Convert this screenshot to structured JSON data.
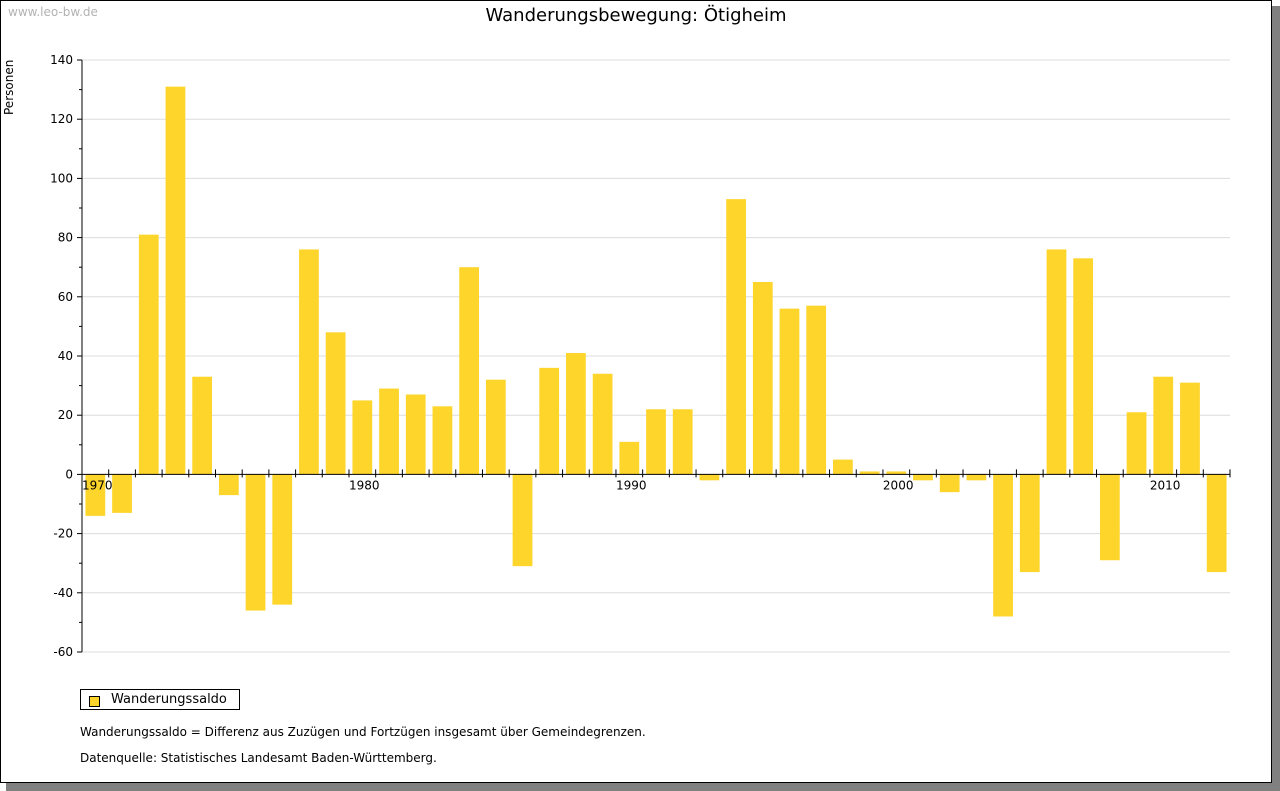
{
  "watermark": "www.leo-bw.de",
  "legend": {
    "label": "Wanderungssaldo"
  },
  "notes": {
    "definition": "Wanderungssaldo = Differenz aus Zuzügen und Fortzügen insgesamt über Gemeindegrenzen.",
    "source": "Datenquelle: Statistisches Landesamt Baden-Württemberg."
  },
  "chart_data": {
    "type": "bar",
    "title": "Wanderungsbewegung: Ötigheim",
    "xlabel": "",
    "ylabel": "Personen",
    "ylim": [
      -60,
      140
    ],
    "yticks": [
      -60,
      -40,
      -20,
      0,
      20,
      40,
      60,
      80,
      100,
      120,
      140
    ],
    "xtick_labels": [
      "1970",
      "1980",
      "1990",
      "2000",
      "2010"
    ],
    "bar_color": "#FDD52B",
    "grid": true,
    "legend_position": "bottom-left",
    "series": [
      {
        "name": "Wanderungssaldo",
        "years": [
          1970,
          1971,
          1972,
          1973,
          1974,
          1975,
          1976,
          1977,
          1978,
          1979,
          1980,
          1981,
          1982,
          1983,
          1984,
          1985,
          1986,
          1987,
          1988,
          1989,
          1990,
          1991,
          1992,
          1993,
          1994,
          1995,
          1996,
          1997,
          1998,
          1999,
          2000,
          2001,
          2002,
          2003,
          2004,
          2005,
          2006,
          2007,
          2008,
          2009,
          2010,
          2011,
          2012
        ],
        "values": [
          -14,
          -13,
          81,
          131,
          33,
          -7,
          -46,
          -44,
          76,
          48,
          25,
          29,
          27,
          23,
          70,
          32,
          -31,
          36,
          41,
          34,
          11,
          22,
          22,
          -2,
          93,
          65,
          56,
          57,
          5,
          1,
          1,
          -2,
          -6,
          -2,
          -48,
          -33,
          76,
          73,
          -29,
          21,
          33,
          31,
          -33
        ]
      }
    ]
  }
}
